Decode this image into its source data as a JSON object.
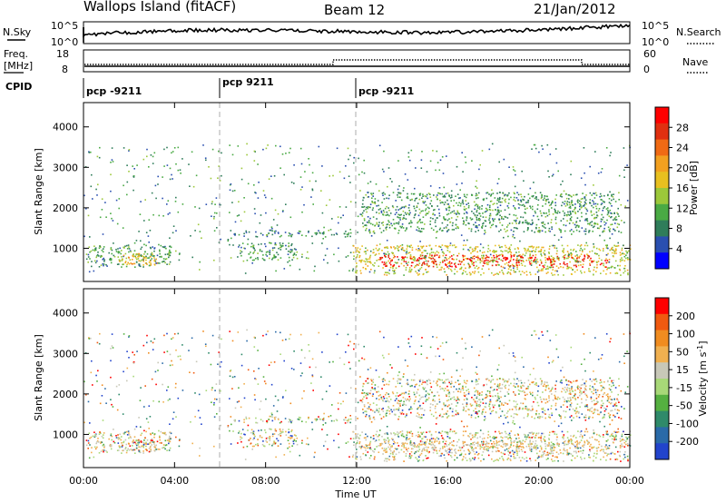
{
  "header": {
    "station": "Wallops Island (fitACF)",
    "beam": "Beam 12",
    "date": "21/Jan/2012"
  },
  "noise": {
    "sky_label": "N.Sky",
    "search_label": "N.Search",
    "ticks_left": [
      "10^5",
      "10^0"
    ],
    "ticks_right": [
      "10^5",
      "10^0"
    ]
  },
  "freq": {
    "label_line1": "Freq.",
    "label_line2": "[MHz]",
    "ticks_left": [
      "18",
      "8"
    ],
    "ticks_right": [
      "60",
      "0"
    ],
    "nave_label": "Nave"
  },
  "cpid": {
    "label": "CPID",
    "segments": [
      {
        "label": "pcp -9211",
        "start_hour": 0,
        "end_hour": 6
      },
      {
        "label": "pcp 9211",
        "start_hour": 6,
        "end_hour": 12
      },
      {
        "label": "pcp -9211",
        "start_hour": 12,
        "end_hour": 24
      }
    ]
  },
  "power_panel": {
    "ylabel": "Slant Range [km]",
    "yticks": [
      "4000",
      "3000",
      "2000",
      "1000"
    ],
    "colorbar_label": "Power [dB]",
    "colorbar_ticks": [
      "28",
      "24",
      "20",
      "16",
      "12",
      "8",
      "4"
    ],
    "colors": [
      "#0000ff",
      "#2a4fb0",
      "#2f7d5a",
      "#4aaa44",
      "#9cc83a",
      "#e8c020",
      "#f2a020",
      "#f06a14",
      "#e03010",
      "#ff0000"
    ]
  },
  "velocity_panel": {
    "ylabel": "Slant Range [km]",
    "yticks": [
      "4000",
      "3000",
      "2000",
      "1000"
    ],
    "colorbar_label": "Velocity [m s^-1]",
    "colorbar_ticks": [
      "200",
      "100",
      "50",
      "15",
      "-15",
      "-50",
      "-100",
      "-200"
    ],
    "colors": [
      "#2244cc",
      "#2a6aa8",
      "#2f8a6a",
      "#55b040",
      "#a8d878",
      "#c8c8b8",
      "#f0b050",
      "#f08c20",
      "#f05a10",
      "#ff0000"
    ]
  },
  "x_axis": {
    "ticks": [
      "00:00",
      "04:00",
      "08:00",
      "12:00",
      "16:00",
      "20:00",
      "00:00"
    ],
    "label": "Time UT"
  },
  "chart_data": {
    "type": "heatmap",
    "title": "Wallops Island (fitACF)  Beam 12  21/Jan/2012",
    "xlabel": "Time UT",
    "ylabel": "Slant Range [km]",
    "xlim_hours": [
      0,
      24
    ],
    "ylim": [
      180,
      4600
    ],
    "panels": [
      {
        "name": "Power",
        "units": "dB",
        "scale_ticks": [
          4,
          8,
          12,
          16,
          20,
          24,
          28
        ]
      },
      {
        "name": "Velocity",
        "units": "m s^-1",
        "scale_ticks": [
          -200,
          -100,
          -50,
          -15,
          15,
          50,
          100,
          200
        ]
      }
    ],
    "echo_regions": [
      {
        "t_start": 0.1,
        "t_end": 3.8,
        "range_min": 550,
        "range_max": 1100,
        "power_db": 8
      },
      {
        "t_start": 1.5,
        "t_end": 3.2,
        "range_min": 600,
        "range_max": 900,
        "power_db": 16
      },
      {
        "t_start": 6.8,
        "t_end": 9.4,
        "range_min": 700,
        "range_max": 1150,
        "power_db": 8
      },
      {
        "t_start": 6.6,
        "t_end": 11.8,
        "range_min": 1300,
        "range_max": 1450,
        "power_db": 6
      },
      {
        "t_start": 11.8,
        "t_end": 24.0,
        "range_min": 350,
        "range_max": 1100,
        "power_db": 14
      },
      {
        "t_start": 13.0,
        "t_end": 23.0,
        "range_min": 550,
        "range_max": 850,
        "power_db": 26
      },
      {
        "t_start": 12.2,
        "t_end": 23.5,
        "range_min": 1400,
        "range_max": 2400,
        "power_db": 8
      }
    ]
  }
}
